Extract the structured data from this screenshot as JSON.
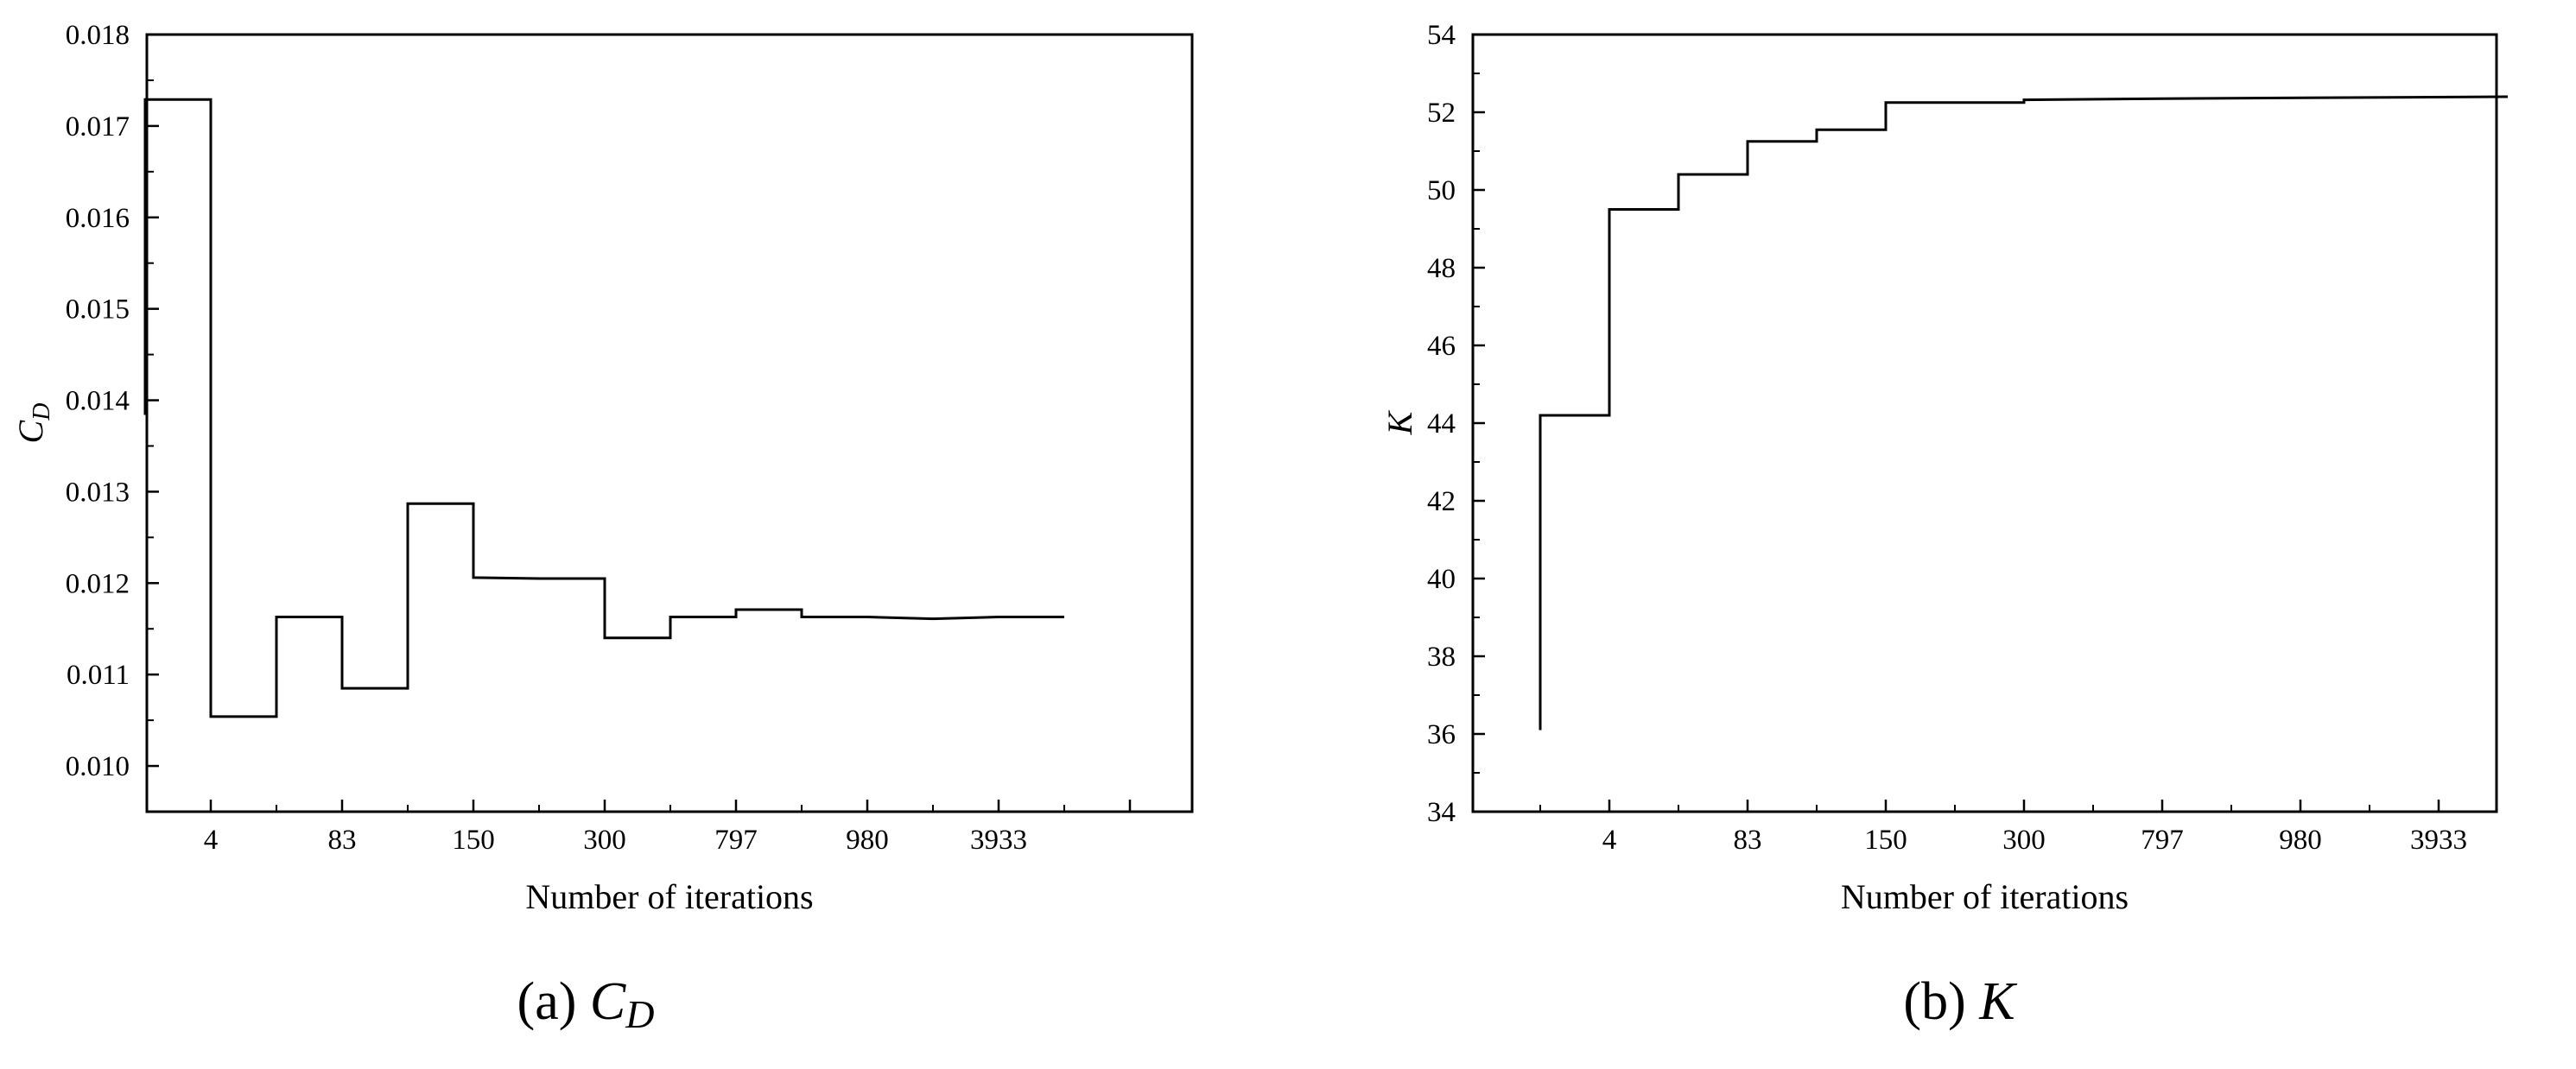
{
  "chart_data": [
    {
      "type": "line",
      "caption_prefix": "(a) ",
      "caption_symbol": "C",
      "caption_subscript": "D",
      "xlabel": "Number of iterations",
      "ylabel_symbol": "C",
      "ylabel_subscript": "D",
      "ylim": [
        0.0095,
        0.018
      ],
      "yticks": [
        0.01,
        0.011,
        0.012,
        0.013,
        0.014,
        0.015,
        0.016,
        0.017,
        0.018
      ],
      "ytick_labels": [
        "0.010",
        "0.011",
        "0.012",
        "0.013",
        "0.014",
        "0.015",
        "0.016",
        "0.017",
        "0.018"
      ],
      "xtick_labels": [
        "4",
        "83",
        "150",
        "300",
        "797",
        "980",
        "3933"
      ],
      "step_points": [
        [
          1,
          0.01384
        ],
        [
          1,
          0.01729
        ],
        [
          2,
          0.01729
        ],
        [
          2,
          0.01054
        ],
        [
          3,
          0.01054
        ],
        [
          3,
          0.01163
        ],
        [
          4,
          0.01163
        ],
        [
          4,
          0.01085
        ],
        [
          5,
          0.01085
        ],
        [
          5,
          0.01287
        ],
        [
          6,
          0.01287
        ],
        [
          6,
          0.01206
        ],
        [
          7,
          0.01205
        ],
        [
          8,
          0.01205
        ],
        [
          8,
          0.0114
        ],
        [
          9,
          0.0114
        ],
        [
          9,
          0.01163
        ],
        [
          10,
          0.01163
        ],
        [
          10,
          0.01171
        ],
        [
          11,
          0.01171
        ],
        [
          11,
          0.01163
        ],
        [
          12,
          0.01163
        ],
        [
          13,
          0.01161
        ],
        [
          14,
          0.01163
        ],
        [
          15,
          0.01163
        ]
      ],
      "grid": false,
      "legend": "none"
    },
    {
      "type": "line",
      "caption_prefix": "(b) ",
      "caption_symbol": "K",
      "caption_subscript": "",
      "xlabel": "Number of iterations",
      "ylabel_symbol": "K",
      "ylabel_subscript": "",
      "ylim": [
        34,
        54
      ],
      "yticks": [
        34,
        36,
        38,
        40,
        42,
        44,
        46,
        48,
        50,
        52,
        54
      ],
      "ytick_labels": [
        "34",
        "36",
        "38",
        "40",
        "42",
        "44",
        "46",
        "48",
        "50",
        "52",
        "54"
      ],
      "xtick_labels": [
        "4",
        "83",
        "150",
        "300",
        "797",
        "980",
        "3933"
      ],
      "step_points": [
        [
          1,
          36.1
        ],
        [
          1,
          44.2
        ],
        [
          2,
          44.2
        ],
        [
          2,
          49.5
        ],
        [
          3,
          49.5
        ],
        [
          3,
          50.4
        ],
        [
          4,
          50.4
        ],
        [
          4,
          51.25
        ],
        [
          5,
          51.25
        ],
        [
          5,
          51.55
        ],
        [
          6,
          51.55
        ],
        [
          6,
          52.25
        ],
        [
          8,
          52.25
        ],
        [
          8,
          52.32
        ],
        [
          10,
          52.35
        ],
        [
          15,
          52.4
        ]
      ],
      "grid": false,
      "legend": "none"
    }
  ]
}
